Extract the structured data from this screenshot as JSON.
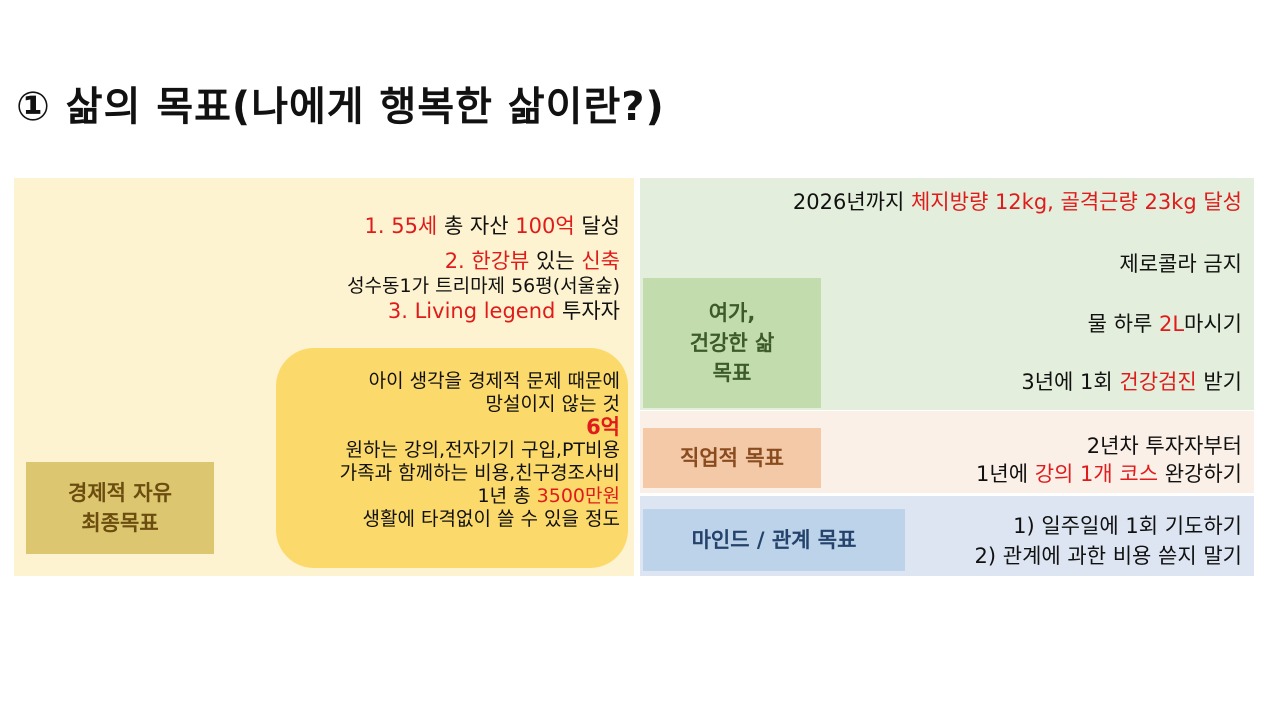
{
  "title": "① 삶의 목표(나에게 행복한 삶이란?)",
  "finance": {
    "label_line1": "경제적 자유",
    "label_line2": "최종목표",
    "goal1": {
      "p1": "1. 55세",
      "p2": " 총 자산 ",
      "p3": "100억",
      "p4": " 달성"
    },
    "goal2": {
      "p1": "2. 한강뷰",
      "p2": " 있는 ",
      "p3": "신축"
    },
    "goal2_sub": "성수동1가 트리마제 56평(서울숲)",
    "goal3": {
      "p1": "3. Living legend",
      "p2": " 투자자"
    },
    "bubble": {
      "line1": "아이 생각을 경제적 문제 때문에",
      "line2": "망설이지 않는 것",
      "line3": "6억",
      "line4": "원하는 강의,전자기기 구입,PT비용",
      "line5": "가족과 함께하는 비용,친구경조사비",
      "line6_a": "1년 총 ",
      "line6_b": "3500만원",
      "line7": "생활에 타격없이 쓸 수 있을 정도"
    }
  },
  "health": {
    "label_line1": "여가,",
    "label_line2": "건강한 삶",
    "label_line3": "목표",
    "item1": {
      "p1": "2026년까지 ",
      "p2": "체지방량 12kg, 골격근량 23kg 달성"
    },
    "item2": "제로콜라 금지",
    "item3": {
      "p1": "물 하루 ",
      "p2": "2L",
      "p3": "마시기"
    },
    "item4": {
      "p1": "3년에 1회 ",
      "p2": "건강검진",
      "p3": " 받기"
    }
  },
  "career": {
    "label": "직업적 목표",
    "line1": "2년차 투자자부터",
    "line2": {
      "p1": "1년에 ",
      "p2": "강의 1개 코스",
      "p3": " 완강하기"
    }
  },
  "mind": {
    "label": "마인드 / 관계 목표",
    "line1": "1) 일주일에 1회 기도하기",
    "line2": "2) 관계에 과한 비용 쓷지 말기"
  },
  "colors": {
    "accent_red": "#e01b1b",
    "finance_bg": "#fdf3d0",
    "bubble": "#fbd96b",
    "health_bg": "#e3efdc",
    "career_bg": "#fbf0e8",
    "mind_bg": "#dde5f2"
  }
}
